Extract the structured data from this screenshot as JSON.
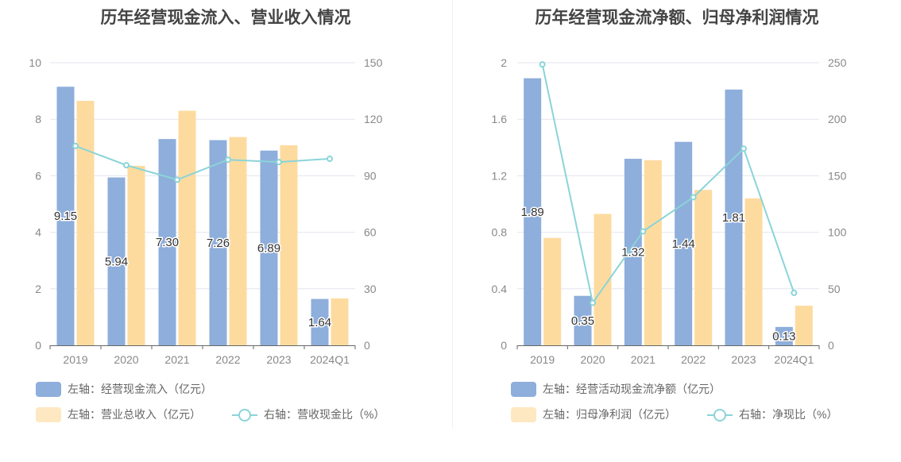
{
  "chart_data": [
    {
      "type": "bar",
      "title": "历年经营现金流入、营业收入情况",
      "categories": [
        "2019",
        "2020",
        "2021",
        "2022",
        "2023",
        "2024Q1"
      ],
      "series": [
        {
          "name": "左轴：经营现金流入（亿元）",
          "axis": "left",
          "type": "bar",
          "color": "#8eaedb",
          "values": [
            9.15,
            5.94,
            7.3,
            7.26,
            6.89,
            1.64
          ],
          "labels": [
            "9.15",
            "5.94",
            "7.30",
            "7.26",
            "6.89",
            "1.64"
          ]
        },
        {
          "name": "左轴：营业总收入（亿元）",
          "axis": "left",
          "type": "bar",
          "color": "#fddb9f",
          "values": [
            8.65,
            6.35,
            8.3,
            7.37,
            7.08,
            1.66
          ]
        },
        {
          "name": "右轴：营收现金比（%）",
          "axis": "right",
          "type": "line",
          "color": "#8ad4d8",
          "values": [
            105.8,
            95.6,
            87.9,
            98.5,
            97.3,
            99.0
          ]
        }
      ],
      "y_left": {
        "min": 0,
        "max": 10,
        "ticks": [
          "0",
          "2",
          "4",
          "6",
          "8",
          "10"
        ]
      },
      "y_right": {
        "min": 0,
        "max": 150,
        "ticks": [
          "0",
          "30",
          "60",
          "90",
          "120",
          "150"
        ]
      },
      "grid": true,
      "legend_position": "bottom-left"
    },
    {
      "type": "bar",
      "title": "历年经营现金流净额、归母净利润情况",
      "categories": [
        "2019",
        "2020",
        "2021",
        "2022",
        "2023",
        "2024Q1"
      ],
      "series": [
        {
          "name": "左轴：经营活动现金流净额（亿元）",
          "axis": "left",
          "type": "bar",
          "color": "#8eaedb",
          "values": [
            1.89,
            0.35,
            1.32,
            1.44,
            1.81,
            0.13
          ],
          "labels": [
            "1.89",
            "0.35",
            "1.32",
            "1.44",
            "1.81",
            "0.13"
          ]
        },
        {
          "name": "左轴：归母净利润（亿元）",
          "axis": "left",
          "type": "bar",
          "color": "#fddb9f",
          "values": [
            0.76,
            0.93,
            1.31,
            1.1,
            1.04,
            0.28
          ]
        },
        {
          "name": "右轴：净现比（%）",
          "axis": "right",
          "type": "line",
          "color": "#8ad4d8",
          "values": [
            248.5,
            37.6,
            100.8,
            131.0,
            174.0,
            46.4
          ]
        }
      ],
      "y_left": {
        "min": 0,
        "max": 2,
        "ticks": [
          "0",
          "0.4",
          "0.8",
          "1.2",
          "1.6",
          "2"
        ]
      },
      "y_right": {
        "min": 0,
        "max": 250,
        "ticks": [
          "0",
          "50",
          "100",
          "150",
          "200",
          "250"
        ]
      },
      "grid": true,
      "legend_position": "bottom-left"
    }
  ]
}
